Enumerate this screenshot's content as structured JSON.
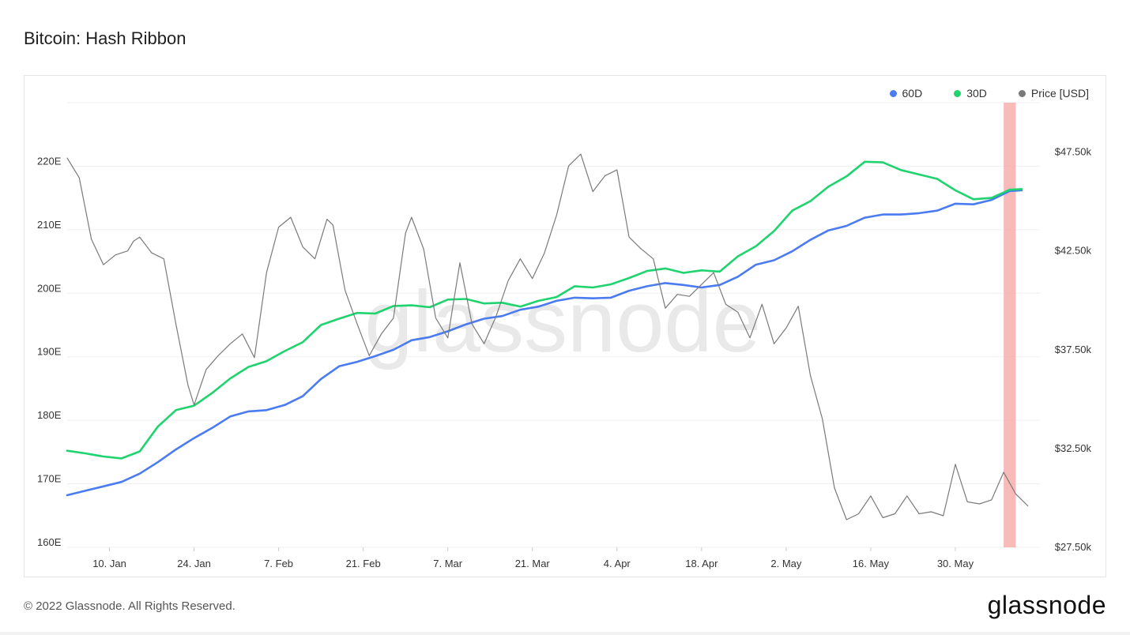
{
  "header": {
    "title": "Bitcoin: Hash Ribbon"
  },
  "footer": {
    "copyright": "© 2022 Glassnode. All Rights Reserved.",
    "brand": "glassnode"
  },
  "watermark": "glassnode",
  "legend": [
    {
      "label": "60D",
      "color": "#4a7bf0",
      "name": "legend-60d"
    },
    {
      "label": "30D",
      "color": "#1fd46e",
      "name": "legend-30d"
    },
    {
      "label": "Price [USD]",
      "color": "#7a7a7a",
      "name": "legend-price"
    }
  ],
  "chart_data": {
    "type": "line",
    "title": "Bitcoin: Hash Ribbon",
    "x_start": "2022-01-03",
    "x_end": "2022-06-13",
    "x_ticks": [
      {
        "date": "2022-01-10",
        "label": "10. Jan"
      },
      {
        "date": "2022-01-24",
        "label": "24. Jan"
      },
      {
        "date": "2022-02-07",
        "label": "7. Feb"
      },
      {
        "date": "2022-02-21",
        "label": "21. Feb"
      },
      {
        "date": "2022-03-07",
        "label": "7. Mar"
      },
      {
        "date": "2022-03-21",
        "label": "21. Mar"
      },
      {
        "date": "2022-04-04",
        "label": "4. Apr"
      },
      {
        "date": "2022-04-18",
        "label": "18. Apr"
      },
      {
        "date": "2022-05-02",
        "label": "2. May"
      },
      {
        "date": "2022-05-16",
        "label": "16. May"
      },
      {
        "date": "2022-05-30",
        "label": "30. May"
      }
    ],
    "y_left": {
      "min": 160,
      "max": 230,
      "ticks": [
        160,
        170,
        180,
        190,
        200,
        210,
        220
      ],
      "tick_labels": [
        "160E",
        "170E",
        "180E",
        "190E",
        "200E",
        "210E",
        "220E"
      ]
    },
    "y_right": {
      "min": 27500,
      "max": 50000,
      "ticks": [
        27500,
        32500,
        37500,
        42500,
        47500
      ],
      "tick_labels": [
        "$27.50k",
        "$32.50k",
        "$37.50k",
        "$42.50k",
        "$47.50k"
      ]
    },
    "highlight": {
      "start": "2022-06-07",
      "end": "2022-06-09",
      "color": "#f7a3a3"
    },
    "series": [
      {
        "name": "60D",
        "axis": "left",
        "color": "#4a7bf0",
        "points": [
          [
            "2022-01-03",
            168.2
          ],
          [
            "2022-01-06",
            168.9
          ],
          [
            "2022-01-09",
            169.6
          ],
          [
            "2022-01-12",
            170.3
          ],
          [
            "2022-01-15",
            171.6
          ],
          [
            "2022-01-18",
            173.4
          ],
          [
            "2022-01-21",
            175.4
          ],
          [
            "2022-01-24",
            177.2
          ],
          [
            "2022-01-27",
            178.8
          ],
          [
            "2022-01-30",
            180.6
          ],
          [
            "2022-02-02",
            181.4
          ],
          [
            "2022-02-05",
            181.6
          ],
          [
            "2022-02-08",
            182.4
          ],
          [
            "2022-02-11",
            183.8
          ],
          [
            "2022-02-14",
            186.5
          ],
          [
            "2022-02-17",
            188.5
          ],
          [
            "2022-02-20",
            189.2
          ],
          [
            "2022-02-23",
            190.1
          ],
          [
            "2022-02-26",
            191.1
          ],
          [
            "2022-03-01",
            192.6
          ],
          [
            "2022-03-04",
            193.1
          ],
          [
            "2022-03-07",
            194.0
          ],
          [
            "2022-03-10",
            195.1
          ],
          [
            "2022-03-13",
            196.0
          ],
          [
            "2022-03-16",
            196.4
          ],
          [
            "2022-03-19",
            197.4
          ],
          [
            "2022-03-22",
            197.9
          ],
          [
            "2022-03-25",
            198.8
          ],
          [
            "2022-03-28",
            199.3
          ],
          [
            "2022-03-31",
            199.2
          ],
          [
            "2022-04-03",
            199.3
          ],
          [
            "2022-04-06",
            200.4
          ],
          [
            "2022-04-09",
            201.1
          ],
          [
            "2022-04-12",
            201.6
          ],
          [
            "2022-04-15",
            201.3
          ],
          [
            "2022-04-18",
            200.9
          ],
          [
            "2022-04-21",
            201.3
          ],
          [
            "2022-04-24",
            202.6
          ],
          [
            "2022-04-27",
            204.5
          ],
          [
            "2022-04-30",
            205.2
          ],
          [
            "2022-05-03",
            206.6
          ],
          [
            "2022-05-06",
            208.4
          ],
          [
            "2022-05-09",
            209.9
          ],
          [
            "2022-05-12",
            210.6
          ],
          [
            "2022-05-15",
            211.9
          ],
          [
            "2022-05-18",
            212.4
          ],
          [
            "2022-05-21",
            212.4
          ],
          [
            "2022-05-24",
            212.6
          ],
          [
            "2022-05-27",
            213.0
          ],
          [
            "2022-05-30",
            214.1
          ],
          [
            "2022-06-02",
            214.0
          ],
          [
            "2022-06-05",
            214.7
          ],
          [
            "2022-06-08",
            216.1
          ],
          [
            "2022-06-10",
            216.2
          ]
        ]
      },
      {
        "name": "30D",
        "axis": "left",
        "color": "#1fd46e",
        "points": [
          [
            "2022-01-03",
            175.2
          ],
          [
            "2022-01-06",
            174.8
          ],
          [
            "2022-01-09",
            174.3
          ],
          [
            "2022-01-12",
            174.0
          ],
          [
            "2022-01-15",
            175.1
          ],
          [
            "2022-01-18",
            179.0
          ],
          [
            "2022-01-21",
            181.6
          ],
          [
            "2022-01-24",
            182.3
          ],
          [
            "2022-01-27",
            184.3
          ],
          [
            "2022-01-30",
            186.6
          ],
          [
            "2022-02-02",
            188.4
          ],
          [
            "2022-02-05",
            189.3
          ],
          [
            "2022-02-08",
            190.9
          ],
          [
            "2022-02-11",
            192.3
          ],
          [
            "2022-02-14",
            195.0
          ],
          [
            "2022-02-17",
            196.0
          ],
          [
            "2022-02-20",
            196.9
          ],
          [
            "2022-02-23",
            196.8
          ],
          [
            "2022-02-26",
            198.0
          ],
          [
            "2022-03-01",
            198.1
          ],
          [
            "2022-03-04",
            197.8
          ],
          [
            "2022-03-07",
            199.0
          ],
          [
            "2022-03-10",
            199.1
          ],
          [
            "2022-03-13",
            198.4
          ],
          [
            "2022-03-16",
            198.5
          ],
          [
            "2022-03-19",
            197.9
          ],
          [
            "2022-03-22",
            198.8
          ],
          [
            "2022-03-25",
            199.4
          ],
          [
            "2022-03-28",
            201.1
          ],
          [
            "2022-03-31",
            200.9
          ],
          [
            "2022-04-03",
            201.4
          ],
          [
            "2022-04-06",
            202.4
          ],
          [
            "2022-04-09",
            203.5
          ],
          [
            "2022-04-12",
            203.9
          ],
          [
            "2022-04-15",
            203.2
          ],
          [
            "2022-04-18",
            203.6
          ],
          [
            "2022-04-21",
            203.4
          ],
          [
            "2022-04-24",
            205.8
          ],
          [
            "2022-04-27",
            207.4
          ],
          [
            "2022-04-30",
            209.8
          ],
          [
            "2022-05-03",
            213.0
          ],
          [
            "2022-05-06",
            214.5
          ],
          [
            "2022-05-09",
            216.8
          ],
          [
            "2022-05-12",
            218.4
          ],
          [
            "2022-05-15",
            220.7
          ],
          [
            "2022-05-18",
            220.6
          ],
          [
            "2022-05-21",
            219.4
          ],
          [
            "2022-05-24",
            218.7
          ],
          [
            "2022-05-27",
            218.0
          ],
          [
            "2022-05-30",
            216.2
          ],
          [
            "2022-06-02",
            214.8
          ],
          [
            "2022-06-05",
            215.0
          ],
          [
            "2022-06-08",
            216.3
          ],
          [
            "2022-06-10",
            216.4
          ]
        ]
      },
      {
        "name": "Price [USD]",
        "axis": "right",
        "color": "#7a7a7a",
        "points": [
          [
            "2022-01-03",
            47200
          ],
          [
            "2022-01-05",
            46200
          ],
          [
            "2022-01-07",
            43100
          ],
          [
            "2022-01-09",
            41800
          ],
          [
            "2022-01-11",
            42300
          ],
          [
            "2022-01-13",
            42500
          ],
          [
            "2022-01-14",
            43000
          ],
          [
            "2022-01-15",
            43200
          ],
          [
            "2022-01-17",
            42400
          ],
          [
            "2022-01-19",
            42100
          ],
          [
            "2022-01-21",
            38800
          ],
          [
            "2022-01-23",
            35700
          ],
          [
            "2022-01-24",
            34700
          ],
          [
            "2022-01-26",
            36500
          ],
          [
            "2022-01-28",
            37200
          ],
          [
            "2022-01-30",
            37800
          ],
          [
            "2022-02-01",
            38300
          ],
          [
            "2022-02-03",
            37100
          ],
          [
            "2022-02-05",
            41400
          ],
          [
            "2022-02-07",
            43700
          ],
          [
            "2022-02-09",
            44200
          ],
          [
            "2022-02-11",
            42700
          ],
          [
            "2022-02-13",
            42100
          ],
          [
            "2022-02-15",
            44100
          ],
          [
            "2022-02-16",
            43800
          ],
          [
            "2022-02-18",
            40500
          ],
          [
            "2022-02-20",
            38800
          ],
          [
            "2022-02-22",
            37200
          ],
          [
            "2022-02-24",
            38300
          ],
          [
            "2022-02-26",
            39100
          ],
          [
            "2022-02-28",
            43400
          ],
          [
            "2022-03-01",
            44200
          ],
          [
            "2022-03-03",
            42600
          ],
          [
            "2022-03-05",
            39100
          ],
          [
            "2022-03-07",
            38100
          ],
          [
            "2022-03-09",
            41900
          ],
          [
            "2022-03-11",
            38800
          ],
          [
            "2022-03-13",
            37800
          ],
          [
            "2022-03-15",
            39200
          ],
          [
            "2022-03-17",
            41000
          ],
          [
            "2022-03-19",
            42100
          ],
          [
            "2022-03-21",
            41100
          ],
          [
            "2022-03-23",
            42400
          ],
          [
            "2022-03-25",
            44300
          ],
          [
            "2022-03-27",
            46800
          ],
          [
            "2022-03-29",
            47400
          ],
          [
            "2022-03-31",
            45500
          ],
          [
            "2022-04-02",
            46300
          ],
          [
            "2022-04-04",
            46600
          ],
          [
            "2022-04-06",
            43200
          ],
          [
            "2022-04-08",
            42600
          ],
          [
            "2022-04-10",
            42100
          ],
          [
            "2022-04-12",
            39600
          ],
          [
            "2022-04-14",
            40300
          ],
          [
            "2022-04-16",
            40200
          ],
          [
            "2022-04-18",
            40800
          ],
          [
            "2022-04-20",
            41400
          ],
          [
            "2022-04-22",
            39800
          ],
          [
            "2022-04-24",
            39400
          ],
          [
            "2022-04-26",
            38100
          ],
          [
            "2022-04-28",
            39800
          ],
          [
            "2022-04-30",
            37800
          ],
          [
            "2022-05-02",
            38600
          ],
          [
            "2022-05-04",
            39700
          ],
          [
            "2022-05-06",
            36200
          ],
          [
            "2022-05-08",
            34000
          ],
          [
            "2022-05-10",
            30500
          ],
          [
            "2022-05-12",
            28900
          ],
          [
            "2022-05-14",
            29200
          ],
          [
            "2022-05-16",
            30100
          ],
          [
            "2022-05-18",
            29000
          ],
          [
            "2022-05-20",
            29200
          ],
          [
            "2022-05-22",
            30100
          ],
          [
            "2022-05-24",
            29200
          ],
          [
            "2022-05-26",
            29300
          ],
          [
            "2022-05-28",
            29100
          ],
          [
            "2022-05-30",
            31700
          ],
          [
            "2022-06-01",
            29800
          ],
          [
            "2022-06-03",
            29700
          ],
          [
            "2022-06-05",
            29900
          ],
          [
            "2022-06-07",
            31300
          ],
          [
            "2022-06-09",
            30200
          ],
          [
            "2022-06-11",
            29600
          ]
        ]
      }
    ]
  }
}
